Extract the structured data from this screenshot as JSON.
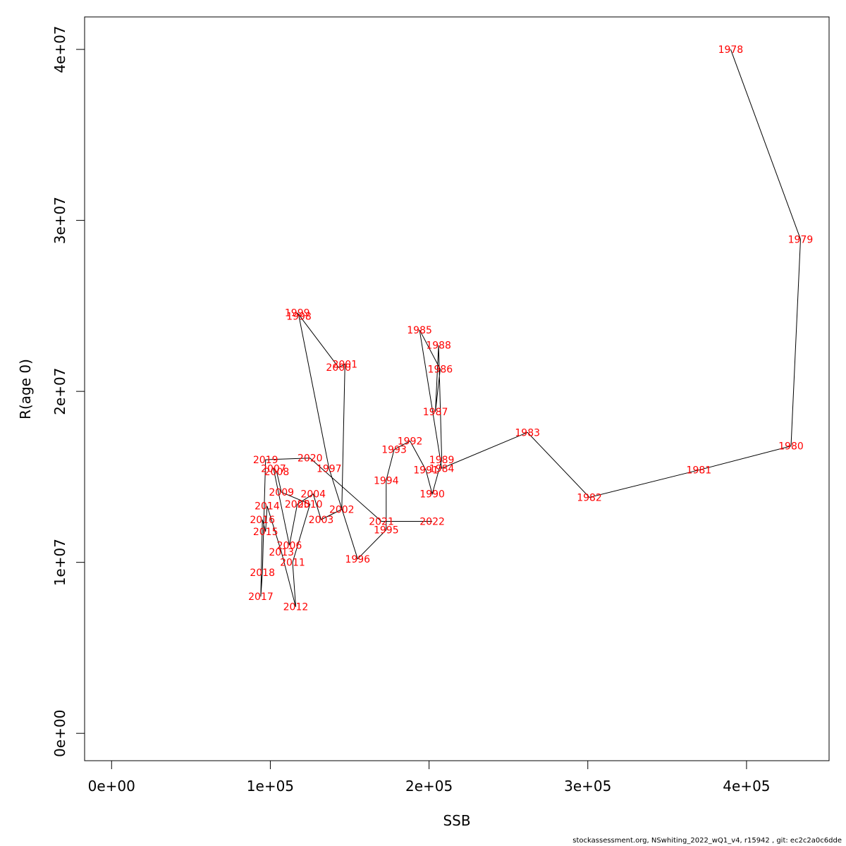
{
  "chart_data": {
    "type": "line",
    "xlabel": "SSB",
    "ylabel": "R(age 0)",
    "xlim": [
      -17000,
      452000
    ],
    "ylim": [
      -1600000,
      41900000
    ],
    "x_ticks": [
      {
        "value": 0,
        "label": "0e+00"
      },
      {
        "value": 100000,
        "label": "1e+05"
      },
      {
        "value": 200000,
        "label": "2e+05"
      },
      {
        "value": 300000,
        "label": "3e+05"
      },
      {
        "value": 400000,
        "label": "4e+05"
      }
    ],
    "y_ticks": [
      {
        "value": 0,
        "label": "0e+00"
      },
      {
        "value": 10000000,
        "label": "1e+07"
      },
      {
        "value": 20000000,
        "label": "2e+07"
      },
      {
        "value": 30000000,
        "label": "3e+07"
      },
      {
        "value": 40000000,
        "label": "4e+07"
      }
    ],
    "series": [
      {
        "color": "#000000",
        "label_color": "#ff0000",
        "points": [
          {
            "year": "1978",
            "x": 390000,
            "y": 40000000
          },
          {
            "year": "1979",
            "x": 434000,
            "y": 28900000
          },
          {
            "year": "1980",
            "x": 428000,
            "y": 16800000
          },
          {
            "year": "1981",
            "x": 370000,
            "y": 15400000
          },
          {
            "year": "1982",
            "x": 301000,
            "y": 13800000
          },
          {
            "year": "1983",
            "x": 262000,
            "y": 17600000
          },
          {
            "year": "1984",
            "x": 208000,
            "y": 15500000
          },
          {
            "year": "1985",
            "x": 194000,
            "y": 23600000
          },
          {
            "year": "1986",
            "x": 207000,
            "y": 21300000
          },
          {
            "year": "1987",
            "x": 204000,
            "y": 18800000
          },
          {
            "year": "1988",
            "x": 206000,
            "y": 22700000
          },
          {
            "year": "1989",
            "x": 208000,
            "y": 16000000
          },
          {
            "year": "1990",
            "x": 202000,
            "y": 14000000
          },
          {
            "year": "1991",
            "x": 198000,
            "y": 15400000
          },
          {
            "year": "1992",
            "x": 188000,
            "y": 17100000
          },
          {
            "year": "1993",
            "x": 178000,
            "y": 16600000
          },
          {
            "year": "1994",
            "x": 173000,
            "y": 14800000
          },
          {
            "year": "1995",
            "x": 173000,
            "y": 11900000
          },
          {
            "year": "1996",
            "x": 155000,
            "y": 10200000
          },
          {
            "year": "1997",
            "x": 137000,
            "y": 15500000
          },
          {
            "year": "1998",
            "x": 118000,
            "y": 24400000
          },
          {
            "year": "1999",
            "x": 117000,
            "y": 24600000
          },
          {
            "year": "2000",
            "x": 143000,
            "y": 21400000
          },
          {
            "year": "2001",
            "x": 147000,
            "y": 21600000
          },
          {
            "year": "2002",
            "x": 145000,
            "y": 13100000
          },
          {
            "year": "2003",
            "x": 132000,
            "y": 12500000
          },
          {
            "year": "2004",
            "x": 127000,
            "y": 14000000
          },
          {
            "year": "2005",
            "x": 117000,
            "y": 13400000
          },
          {
            "year": "2006",
            "x": 112000,
            "y": 11000000
          },
          {
            "year": "2007",
            "x": 102000,
            "y": 15500000
          },
          {
            "year": "2008",
            "x": 104000,
            "y": 15300000
          },
          {
            "year": "2009",
            "x": 107000,
            "y": 14100000
          },
          {
            "year": "2010",
            "x": 125000,
            "y": 13400000
          },
          {
            "year": "2011",
            "x": 114000,
            "y": 10000000
          },
          {
            "year": "2012",
            "x": 116000,
            "y": 7400000
          },
          {
            "year": "2013",
            "x": 107000,
            "y": 10600000
          },
          {
            "year": "2014",
            "x": 98000,
            "y": 13300000
          },
          {
            "year": "2015",
            "x": 97000,
            "y": 11800000
          },
          {
            "year": "2016",
            "x": 95000,
            "y": 12500000
          },
          {
            "year": "2017",
            "x": 94000,
            "y": 8000000
          },
          {
            "year": "2018",
            "x": 95000,
            "y": 9400000
          },
          {
            "year": "2019",
            "x": 97000,
            "y": 16000000
          },
          {
            "year": "2020",
            "x": 125000,
            "y": 16100000
          },
          {
            "year": "2021",
            "x": 170000,
            "y": 12400000
          },
          {
            "year": "2022",
            "x": 202000,
            "y": 12400000
          }
        ]
      }
    ]
  },
  "footer": {
    "text": "stockassessment.org, NSwhiting_2022_wQ1_v4, r15942 , git: ec2c2a0c6dde"
  }
}
